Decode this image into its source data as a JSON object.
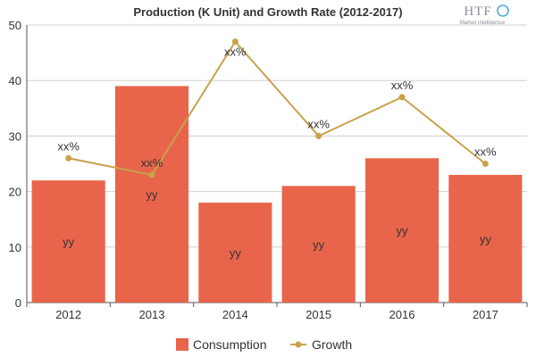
{
  "logo": {
    "text": "HTF",
    "subtext": "Market Intelligence"
  },
  "chart_data": {
    "type": "bar",
    "title": "Production (K Unit) and Growth Rate (2012-2017)",
    "categories": [
      "2012",
      "2013",
      "2014",
      "2015",
      "2016",
      "2017"
    ],
    "ylim": [
      0,
      50
    ],
    "yticks": [
      "0",
      "10",
      "20",
      "30",
      "40",
      "50"
    ],
    "grid": true,
    "legend_position": "bottom",
    "series": [
      {
        "name": "Consumption",
        "type": "bar",
        "color": "#e8654b",
        "values": [
          22,
          39,
          18,
          21,
          26,
          23
        ],
        "labels": [
          "yy",
          "yy",
          "yy",
          "yy",
          "yy",
          "yy"
        ]
      },
      {
        "name": "Growth",
        "type": "line",
        "color": "#c9a24a",
        "values": [
          26,
          23,
          47,
          30,
          37,
          25
        ],
        "labels": [
          "xx%",
          "xx%",
          "xx%",
          "xx%",
          "xx%",
          "xx%"
        ]
      }
    ]
  }
}
